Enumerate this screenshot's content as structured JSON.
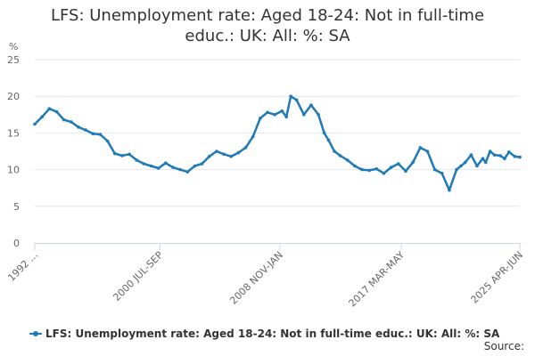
{
  "title_line1": "LFS: Unemployment rate: Aged 18-24: Not in full-time",
  "title_line2": "educ.: UK: All: %: SA",
  "source_label": "Source:",
  "colors": {
    "series": "#1f7ab8",
    "grid": "#e6e6e6",
    "axis": "#ccd6eb",
    "text": "#666666"
  },
  "chart_data": {
    "type": "line",
    "title": "LFS: Unemployment rate: Aged 18-24: Not in full-time educ.: UK: All: %: SA",
    "ylabel": "%",
    "ylim": [
      0,
      25
    ],
    "yticks": [
      0,
      5,
      10,
      15,
      20,
      25
    ],
    "grid": true,
    "legend_position": "bottom-center",
    "xlim": [
      1992.0,
      2025.35
    ],
    "xtick_labels": [
      {
        "x": 1992.0,
        "label": "1992 ..."
      },
      {
        "x": 2000.6,
        "label": "2000 JUL-SEP"
      },
      {
        "x": 2008.85,
        "label": "2008 NOV-JAN"
      },
      {
        "x": 2017.2,
        "label": "2017 MAR-MAY"
      },
      {
        "x": 2025.35,
        "label": "2025 APR-JUN"
      }
    ],
    "series": [
      {
        "name": "LFS: Unemployment rate: Aged 18-24: Not in full-time educ.: UK: All: %: SA",
        "x": [
          1992.0,
          1992.5,
          1993.0,
          1993.5,
          1994.0,
          1994.5,
          1995.0,
          1995.5,
          1996.0,
          1996.5,
          1997.0,
          1997.5,
          1998.0,
          1998.5,
          1999.0,
          1999.5,
          2000.0,
          2000.5,
          2001.0,
          2001.5,
          2002.0,
          2002.5,
          2003.0,
          2003.5,
          2004.0,
          2004.5,
          2005.0,
          2005.5,
          2006.0,
          2006.5,
          2007.0,
          2007.5,
          2008.0,
          2008.5,
          2009.0,
          2009.3,
          2009.6,
          2010.0,
          2010.5,
          2011.0,
          2011.5,
          2011.9,
          2012.2,
          2012.6,
          2013.0,
          2013.5,
          2014.0,
          2014.5,
          2015.0,
          2015.5,
          2016.0,
          2016.5,
          2017.0,
          2017.5,
          2018.0,
          2018.5,
          2019.0,
          2019.5,
          2020.0,
          2020.5,
          2021.0,
          2021.3,
          2021.6,
          2022.0,
          2022.4,
          2022.8,
          2023.0,
          2023.3,
          2023.6,
          2024.0,
          2024.3,
          2024.6,
          2025.0,
          2025.35
        ],
        "y": [
          16.2,
          17.2,
          18.3,
          17.9,
          16.8,
          16.5,
          15.8,
          15.4,
          14.9,
          14.8,
          13.9,
          12.2,
          11.9,
          12.1,
          11.3,
          10.8,
          10.5,
          10.2,
          10.9,
          10.3,
          10.0,
          9.7,
          10.5,
          10.8,
          11.8,
          12.5,
          12.1,
          11.8,
          12.3,
          13.0,
          14.5,
          17.0,
          17.8,
          17.5,
          18.0,
          17.2,
          20.0,
          19.5,
          17.5,
          18.8,
          17.5,
          15.0,
          14.0,
          12.5,
          11.9,
          11.3,
          10.5,
          10.0,
          9.9,
          10.1,
          9.5,
          10.3,
          10.8,
          9.8,
          11.0,
          13.0,
          12.5,
          10.0,
          9.5,
          7.2,
          10.0,
          10.5,
          11.0,
          12.0,
          10.5,
          11.5,
          11.0,
          12.5,
          12.0,
          11.9,
          11.5,
          12.4,
          11.8,
          11.7
        ]
      }
    ]
  }
}
